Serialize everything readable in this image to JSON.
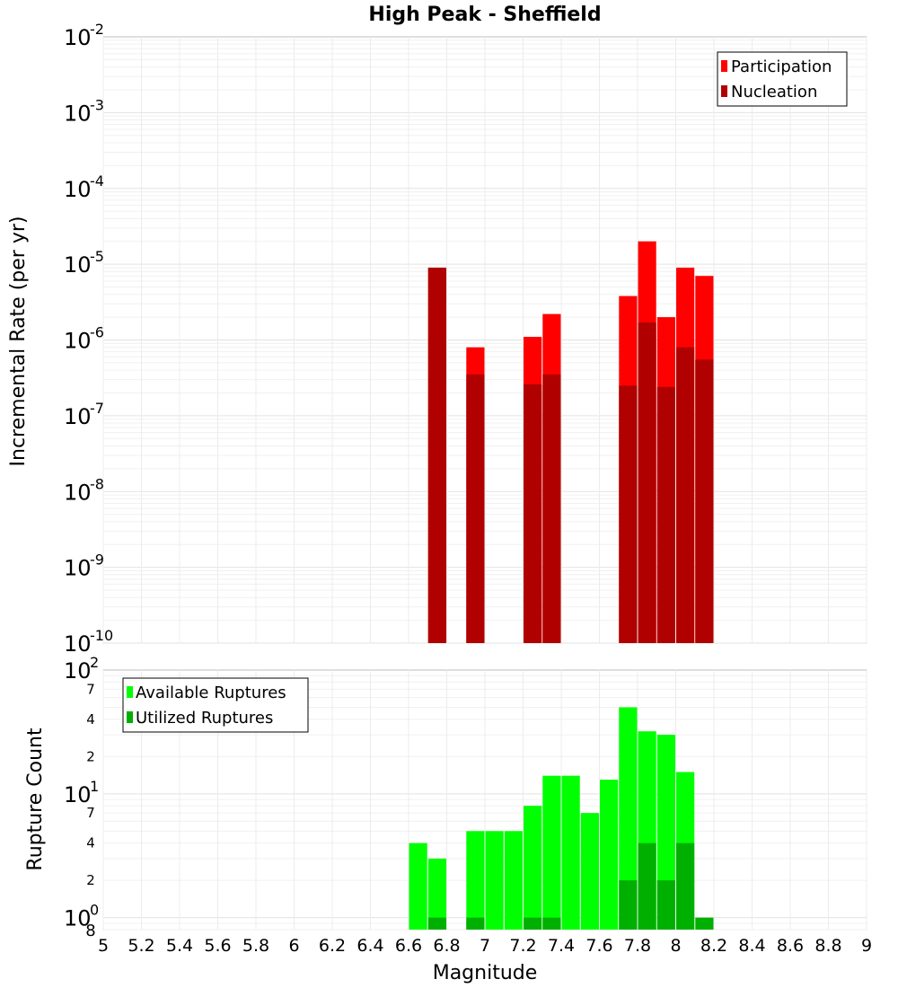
{
  "title": "High Peak - Sheffield",
  "xlabel": "Magnitude",
  "x_ticks": [
    "5",
    "5.2",
    "5.4",
    "5.6",
    "5.8",
    "6",
    "6.2",
    "6.4",
    "6.6",
    "6.8",
    "7",
    "7.2",
    "7.4",
    "7.6",
    "7.8",
    "8",
    "8.2",
    "8.4",
    "8.6",
    "8.8",
    "9"
  ],
  "chart_data": [
    {
      "type": "bar",
      "scale": "log",
      "ylabel": "Incremental Rate (per yr)",
      "xlim": [
        5,
        9
      ],
      "ylim": [
        1e-10,
        0.01
      ],
      "y_tick_bases": [
        "10",
        "10",
        "10",
        "10",
        "10",
        "10",
        "10",
        "10",
        "10"
      ],
      "y_tick_exponents": [
        "-10",
        "-9",
        "-8",
        "-7",
        "-6",
        "-5",
        "-4",
        "-3",
        "-2"
      ],
      "legend_position": "top-right",
      "bar_width": 0.095,
      "series": [
        {
          "name": "Participation",
          "color": "#ff0000",
          "x": [
            6.75,
            6.95,
            7.25,
            7.35,
            7.75,
            7.85,
            7.95,
            8.05,
            8.15
          ],
          "values": [
            9e-06,
            8e-07,
            1.1e-06,
            2.2e-06,
            3.8e-06,
            2e-05,
            2e-06,
            9e-06,
            7e-06
          ]
        },
        {
          "name": "Nucleation",
          "color": "#b00000",
          "x": [
            6.75,
            6.95,
            7.25,
            7.35,
            7.75,
            7.85,
            7.95,
            8.05,
            8.15
          ],
          "values": [
            9e-06,
            3.5e-07,
            2.6e-07,
            3.5e-07,
            2.5e-07,
            1.7e-06,
            2.4e-07,
            8e-07,
            5.5e-07
          ]
        }
      ]
    },
    {
      "type": "bar",
      "scale": "log",
      "ylabel": "Rupture Count",
      "xlim": [
        5,
        9
      ],
      "ylim": [
        0.8,
        100
      ],
      "major_tick_bases": [
        "10",
        "10",
        "10"
      ],
      "major_tick_exponents": [
        "0",
        "1",
        "2"
      ],
      "minor_tick_labels": [
        "8",
        "2",
        "4",
        "7",
        "2",
        "4",
        "7"
      ],
      "legend_position": "top-left",
      "bar_width": 0.095,
      "series": [
        {
          "name": "Available Ruptures",
          "color": "#00ff00",
          "x": [
            6.65,
            6.75,
            6.95,
            7.05,
            7.15,
            7.25,
            7.35,
            7.45,
            7.55,
            7.65,
            7.75,
            7.85,
            7.95,
            8.05
          ],
          "values": [
            4,
            3,
            5,
            5,
            5,
            8,
            14,
            14,
            7,
            13,
            50,
            32,
            30,
            15
          ]
        },
        {
          "name": "Utilized Ruptures",
          "color": "#00b000",
          "x": [
            6.75,
            6.95,
            7.25,
            7.35,
            7.75,
            7.85,
            7.95,
            8.05,
            8.15
          ],
          "values": [
            1,
            1,
            1,
            1,
            2,
            4,
            2,
            4,
            1
          ]
        }
      ]
    }
  ]
}
